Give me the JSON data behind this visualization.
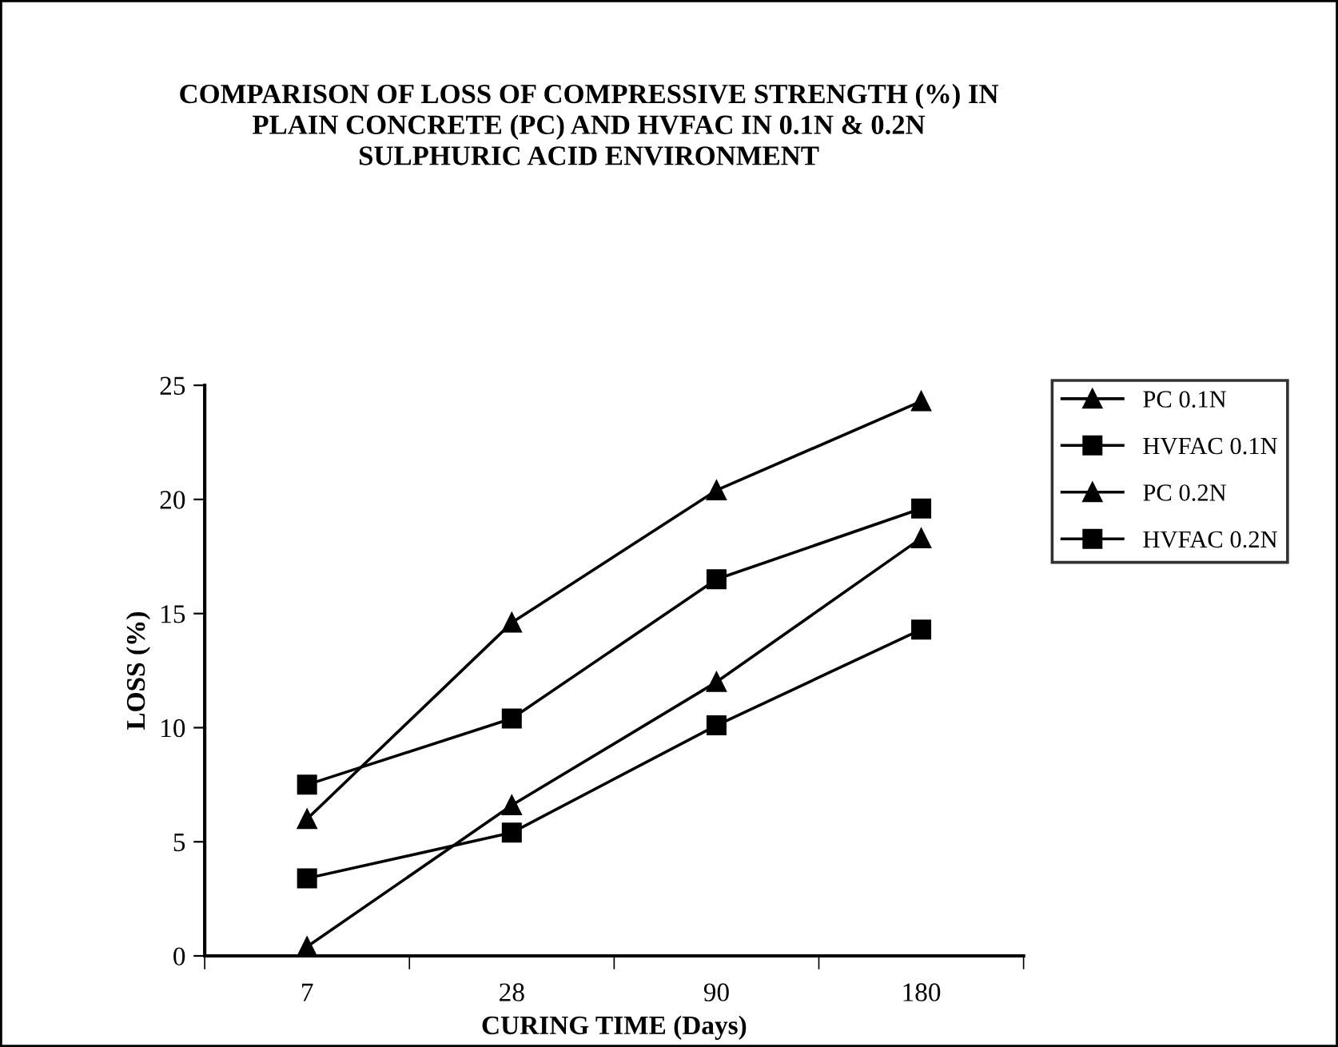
{
  "chart_data": {
    "type": "line",
    "title": "COMPARISON OF LOSS OF COMPRESSIVE STRENGTH (%) IN\nPLAIN CONCRETE (PC) AND HVFAC IN 0.1N & 0.2N\nSULPHURIC ACID ENVIRONMENT",
    "xlabel": "CURING TIME (Days)",
    "ylabel": "LOSS (%)",
    "categories": [
      "7",
      "28",
      "90",
      "180"
    ],
    "series": [
      {
        "name": "PC 0.1N",
        "color": "#000000",
        "marker": "triangle",
        "values": [
          0.4,
          6.6,
          12.0,
          18.3
        ]
      },
      {
        "name": "HVFAC 0.1N",
        "color": "#000000",
        "marker": "square",
        "values": [
          3.4,
          5.4,
          10.1,
          14.3
        ]
      },
      {
        "name": "PC 0.2N",
        "color": "#000000",
        "marker": "triangle",
        "values": [
          6.0,
          14.6,
          20.4,
          24.3
        ]
      },
      {
        "name": "HVFAC 0.2N",
        "color": "#000000",
        "marker": "square",
        "values": [
          7.5,
          10.4,
          16.5,
          19.6
        ]
      }
    ],
    "ylim": [
      0,
      25
    ],
    "yticks": [
      0,
      5,
      10,
      15,
      20,
      25
    ],
    "grid": false,
    "legend": "right",
    "line_style": "solid"
  }
}
